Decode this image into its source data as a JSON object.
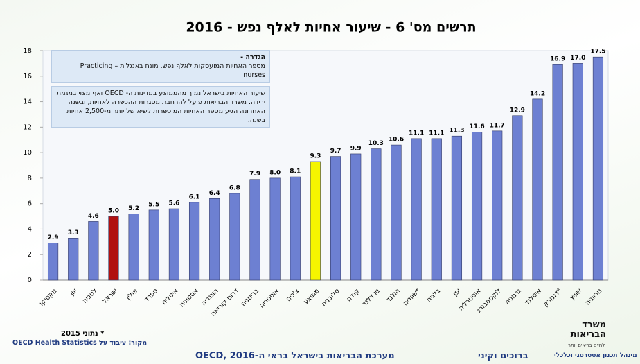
{
  "chart_data": {
    "type": "bar",
    "title": "תרשים מס' 6 - שיעור אחיות לאלף נפש - 2016",
    "categories": [
      "מקסיקו",
      "יוון",
      "לטביה",
      "ישראל",
      "פולין",
      "ספרד",
      "איטליה",
      "אסטוניה",
      "הונגריה",
      "דרום קוריאה",
      "בריטניה",
      "אוסטריה",
      "צ'כיה",
      "ממוצע",
      "סלובניה",
      "קנדה",
      "ניו זילנד",
      "הולנד",
      "שוודיה*",
      "בלגיה",
      "יפן",
      "אוסטרליה",
      "לוקסמבורג",
      "גרמניה",
      "איסלנד",
      "דנמרק*",
      "שוויץ",
      "נורווגיה"
    ],
    "values": [
      2.9,
      3.3,
      4.6,
      5.0,
      5.2,
      5.5,
      5.6,
      6.1,
      6.4,
      6.8,
      7.9,
      8.0,
      8.1,
      9.3,
      9.7,
      9.9,
      10.3,
      10.6,
      11.1,
      11.1,
      11.3,
      11.6,
      11.7,
      12.9,
      14.2,
      16.9,
      17.0,
      17.5
    ],
    "value_labels": [
      "2.9",
      "3.3",
      "4.6",
      "5.0",
      "5.2",
      "5.5",
      "5.6",
      "6.1",
      "6.4",
      "6.8",
      "7.9",
      "8.0",
      "8.1",
      "9.3",
      "9.7",
      "9.9",
      "10.3",
      "10.6",
      "11.1",
      "11.1",
      "11.3",
      "11.6",
      "11.7",
      "12.9",
      "14.2",
      "16.9",
      "17.0",
      "17.5"
    ],
    "color": "#6d80d2",
    "colors": [
      "#6d80d2",
      "#6d80d2",
      "#6d80d2",
      "#b01010",
      "#6d80d2",
      "#6d80d2",
      "#6d80d2",
      "#6d80d2",
      "#6d80d2",
      "#6d80d2",
      "#6d80d2",
      "#6d80d2",
      "#6d80d2",
      "#f5f500",
      "#6d80d2",
      "#6d80d2",
      "#6d80d2",
      "#6d80d2",
      "#6d80d2",
      "#6d80d2",
      "#6d80d2",
      "#6d80d2",
      "#6d80d2",
      "#6d80d2",
      "#6d80d2",
      "#6d80d2",
      "#6d80d2",
      "#6d80d2"
    ],
    "ylim": [
      0,
      18
    ],
    "yticks": [
      0,
      2,
      4,
      6,
      8,
      10,
      12,
      14,
      16,
      18
    ],
    "grid": false,
    "annotations": [
      {
        "heading": "הגדרה -",
        "text": "מספר האחיות המועסקות לאלף נפש. מונח באנגלית – Practicing nurses"
      },
      {
        "text": "שיעור האחיות בישראל נמוך מהממוצע במדינות ה- OECD ואף מצוי במגמת ירידה. משרד הבריאות פועל להרחבת מסגרות ההכשרה לאחיות, ובשנה האחרונה הגיע מספר האחיות המוכשרות לשיא של יותר מ-2,500 אחיות בשנה."
      }
    ]
  },
  "footer": {
    "note": "* נתוני 2015",
    "source": "מקור: עיבוד על OECD Health Statistics",
    "center": "מערכת הבריאות בישראל בראי ה-OECD, 2016",
    "right_text": "ברוכים וקיני",
    "logo_title": "משרד הבריאות",
    "logo_subtitle": "לחיים בריאים יותר",
    "department": "מינהל תכנון אסטרטגי וכלכלי"
  }
}
